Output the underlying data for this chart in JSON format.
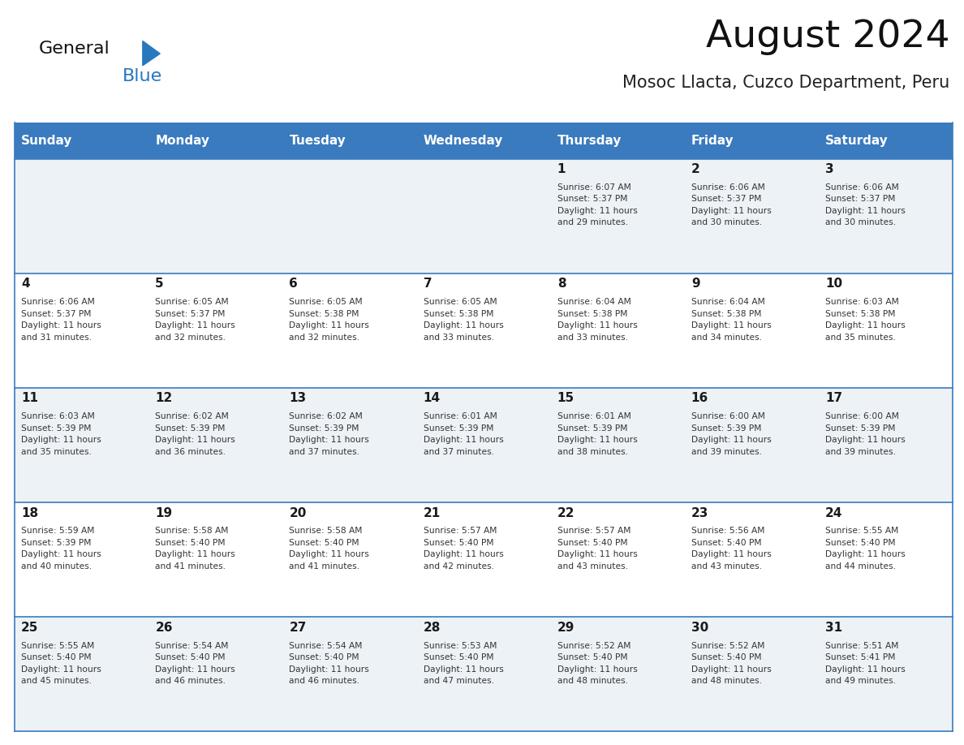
{
  "title": "August 2024",
  "subtitle": "Mosoc Llacta, Cuzco Department, Peru",
  "header_bg_color": "#3a7abf",
  "header_text_color": "#ffffff",
  "day_names": [
    "Sunday",
    "Monday",
    "Tuesday",
    "Wednesday",
    "Thursday",
    "Friday",
    "Saturday"
  ],
  "row_bg_even": "#edf2f7",
  "row_bg_odd": "#ffffff",
  "cell_border_color": "#3a7abf",
  "day_num_color": "#1a1a1a",
  "info_text_color": "#333333",
  "logo_general_color": "#111111",
  "logo_blue_color": "#2878be",
  "logo_triangle_color": "#2878be",
  "days": [
    {
      "day": 1,
      "col": 4,
      "row": 0,
      "sunrise": "6:07 AM",
      "sunset": "5:37 PM",
      "daylight": "11 hours and 29 minutes"
    },
    {
      "day": 2,
      "col": 5,
      "row": 0,
      "sunrise": "6:06 AM",
      "sunset": "5:37 PM",
      "daylight": "11 hours and 30 minutes"
    },
    {
      "day": 3,
      "col": 6,
      "row": 0,
      "sunrise": "6:06 AM",
      "sunset": "5:37 PM",
      "daylight": "11 hours and 30 minutes"
    },
    {
      "day": 4,
      "col": 0,
      "row": 1,
      "sunrise": "6:06 AM",
      "sunset": "5:37 PM",
      "daylight": "11 hours and 31 minutes"
    },
    {
      "day": 5,
      "col": 1,
      "row": 1,
      "sunrise": "6:05 AM",
      "sunset": "5:37 PM",
      "daylight": "11 hours and 32 minutes"
    },
    {
      "day": 6,
      "col": 2,
      "row": 1,
      "sunrise": "6:05 AM",
      "sunset": "5:38 PM",
      "daylight": "11 hours and 32 minutes"
    },
    {
      "day": 7,
      "col": 3,
      "row": 1,
      "sunrise": "6:05 AM",
      "sunset": "5:38 PM",
      "daylight": "11 hours and 33 minutes"
    },
    {
      "day": 8,
      "col": 4,
      "row": 1,
      "sunrise": "6:04 AM",
      "sunset": "5:38 PM",
      "daylight": "11 hours and 33 minutes"
    },
    {
      "day": 9,
      "col": 5,
      "row": 1,
      "sunrise": "6:04 AM",
      "sunset": "5:38 PM",
      "daylight": "11 hours and 34 minutes"
    },
    {
      "day": 10,
      "col": 6,
      "row": 1,
      "sunrise": "6:03 AM",
      "sunset": "5:38 PM",
      "daylight": "11 hours and 35 minutes"
    },
    {
      "day": 11,
      "col": 0,
      "row": 2,
      "sunrise": "6:03 AM",
      "sunset": "5:39 PM",
      "daylight": "11 hours and 35 minutes"
    },
    {
      "day": 12,
      "col": 1,
      "row": 2,
      "sunrise": "6:02 AM",
      "sunset": "5:39 PM",
      "daylight": "11 hours and 36 minutes"
    },
    {
      "day": 13,
      "col": 2,
      "row": 2,
      "sunrise": "6:02 AM",
      "sunset": "5:39 PM",
      "daylight": "11 hours and 37 minutes"
    },
    {
      "day": 14,
      "col": 3,
      "row": 2,
      "sunrise": "6:01 AM",
      "sunset": "5:39 PM",
      "daylight": "11 hours and 37 minutes"
    },
    {
      "day": 15,
      "col": 4,
      "row": 2,
      "sunrise": "6:01 AM",
      "sunset": "5:39 PM",
      "daylight": "11 hours and 38 minutes"
    },
    {
      "day": 16,
      "col": 5,
      "row": 2,
      "sunrise": "6:00 AM",
      "sunset": "5:39 PM",
      "daylight": "11 hours and 39 minutes"
    },
    {
      "day": 17,
      "col": 6,
      "row": 2,
      "sunrise": "6:00 AM",
      "sunset": "5:39 PM",
      "daylight": "11 hours and 39 minutes"
    },
    {
      "day": 18,
      "col": 0,
      "row": 3,
      "sunrise": "5:59 AM",
      "sunset": "5:39 PM",
      "daylight": "11 hours and 40 minutes"
    },
    {
      "day": 19,
      "col": 1,
      "row": 3,
      "sunrise": "5:58 AM",
      "sunset": "5:40 PM",
      "daylight": "11 hours and 41 minutes"
    },
    {
      "day": 20,
      "col": 2,
      "row": 3,
      "sunrise": "5:58 AM",
      "sunset": "5:40 PM",
      "daylight": "11 hours and 41 minutes"
    },
    {
      "day": 21,
      "col": 3,
      "row": 3,
      "sunrise": "5:57 AM",
      "sunset": "5:40 PM",
      "daylight": "11 hours and 42 minutes"
    },
    {
      "day": 22,
      "col": 4,
      "row": 3,
      "sunrise": "5:57 AM",
      "sunset": "5:40 PM",
      "daylight": "11 hours and 43 minutes"
    },
    {
      "day": 23,
      "col": 5,
      "row": 3,
      "sunrise": "5:56 AM",
      "sunset": "5:40 PM",
      "daylight": "11 hours and 43 minutes"
    },
    {
      "day": 24,
      "col": 6,
      "row": 3,
      "sunrise": "5:55 AM",
      "sunset": "5:40 PM",
      "daylight": "11 hours and 44 minutes"
    },
    {
      "day": 25,
      "col": 0,
      "row": 4,
      "sunrise": "5:55 AM",
      "sunset": "5:40 PM",
      "daylight": "11 hours and 45 minutes"
    },
    {
      "day": 26,
      "col": 1,
      "row": 4,
      "sunrise": "5:54 AM",
      "sunset": "5:40 PM",
      "daylight": "11 hours and 46 minutes"
    },
    {
      "day": 27,
      "col": 2,
      "row": 4,
      "sunrise": "5:54 AM",
      "sunset": "5:40 PM",
      "daylight": "11 hours and 46 minutes"
    },
    {
      "day": 28,
      "col": 3,
      "row": 4,
      "sunrise": "5:53 AM",
      "sunset": "5:40 PM",
      "daylight": "11 hours and 47 minutes"
    },
    {
      "day": 29,
      "col": 4,
      "row": 4,
      "sunrise": "5:52 AM",
      "sunset": "5:40 PM",
      "daylight": "11 hours and 48 minutes"
    },
    {
      "day": 30,
      "col": 5,
      "row": 4,
      "sunrise": "5:52 AM",
      "sunset": "5:40 PM",
      "daylight": "11 hours and 48 minutes"
    },
    {
      "day": 31,
      "col": 6,
      "row": 4,
      "sunrise": "5:51 AM",
      "sunset": "5:41 PM",
      "daylight": "11 hours and 49 minutes"
    }
  ],
  "num_rows": 5,
  "num_cols": 7,
  "fig_width": 11.88,
  "fig_height": 9.18
}
